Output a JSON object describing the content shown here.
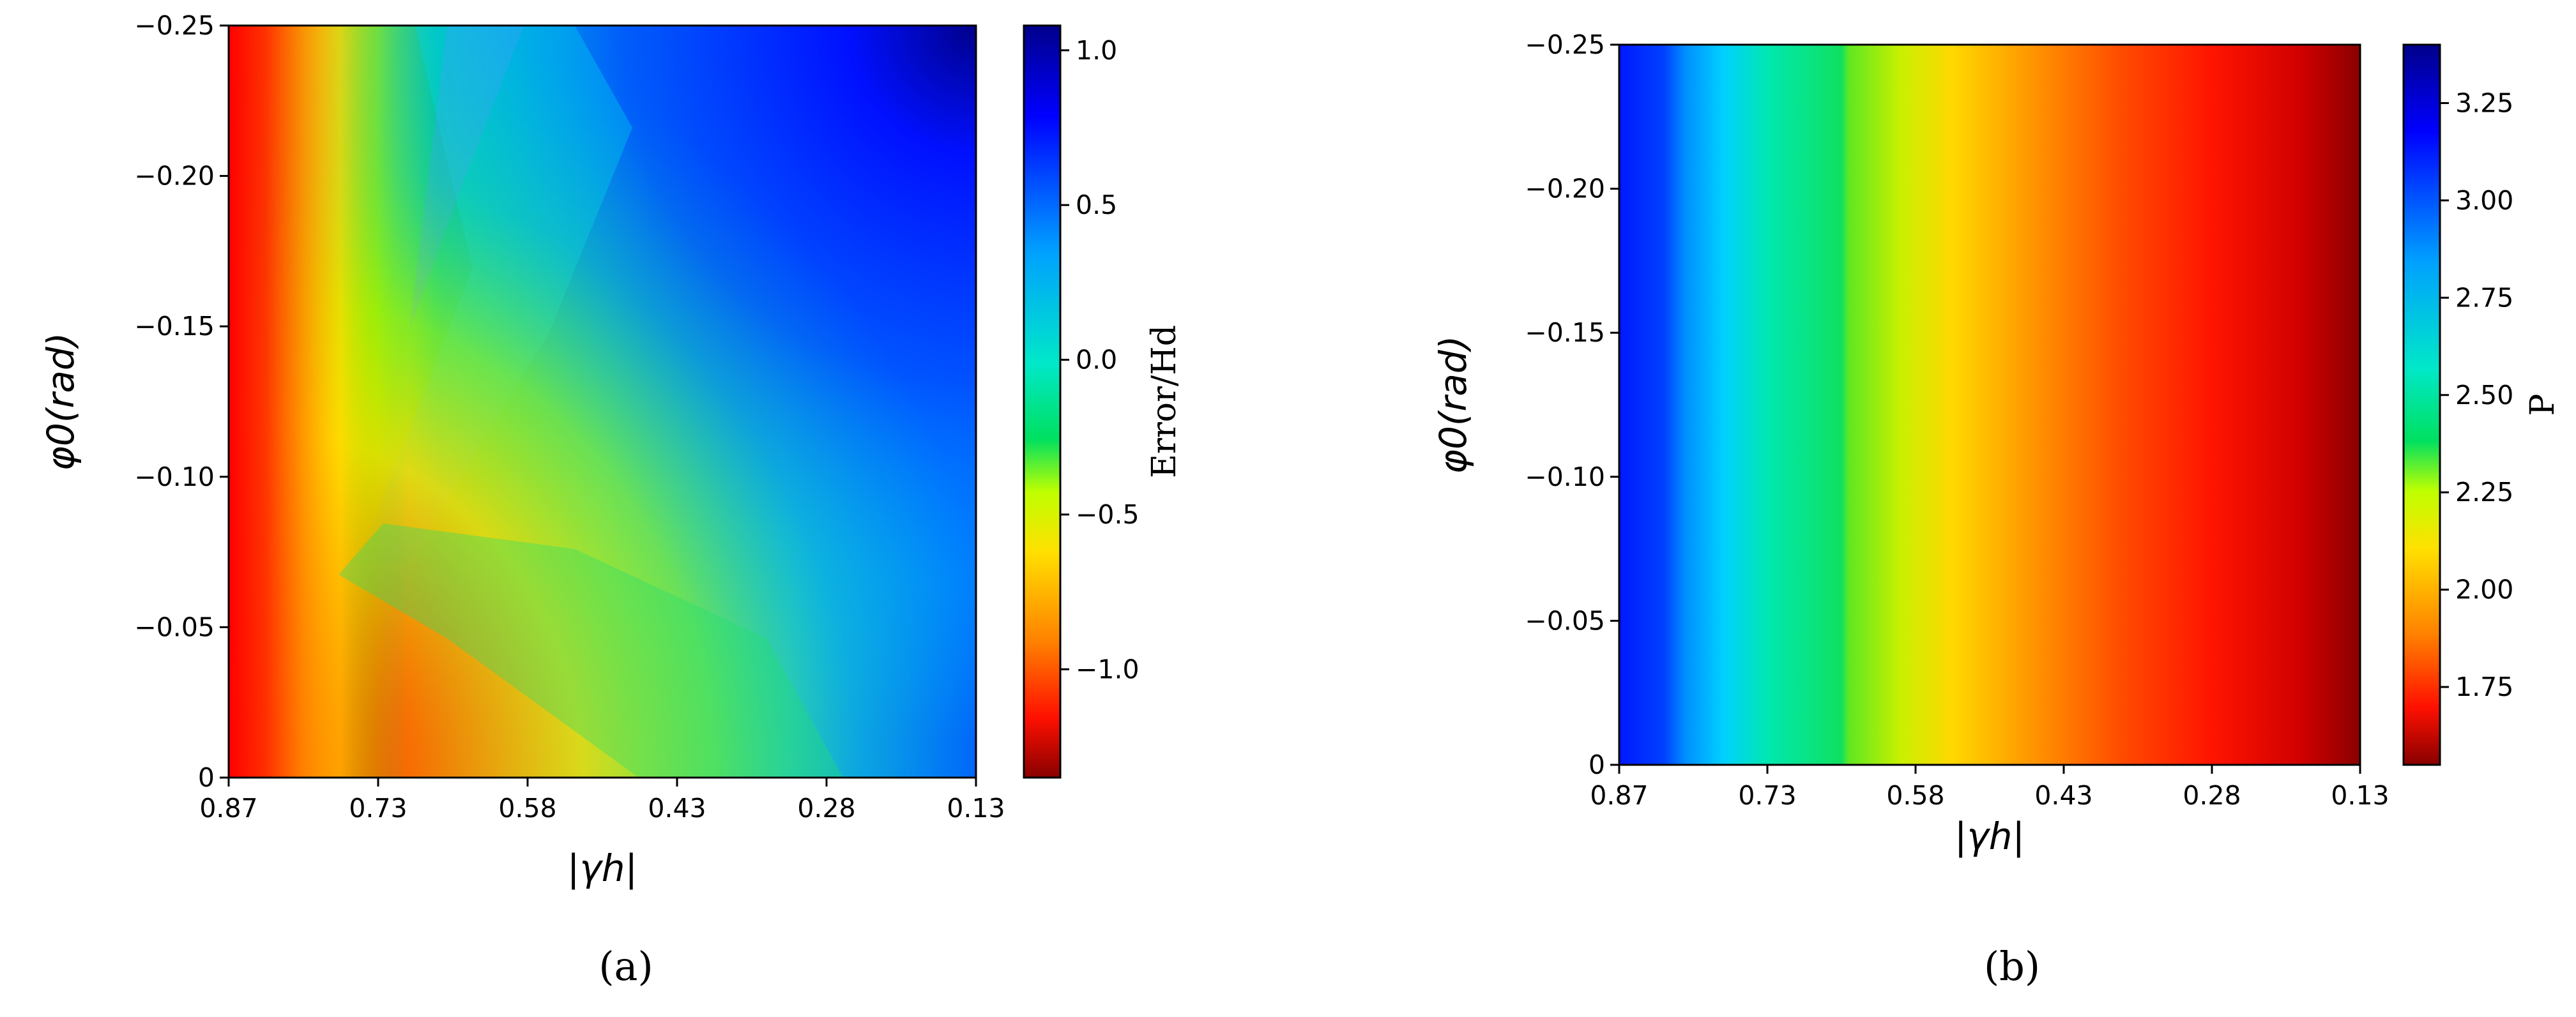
{
  "chart_data": [
    {
      "type": "heatmap",
      "panel": "a",
      "caption": "(a)",
      "xlabel": "|γh|",
      "ylabel": "φ0(rad)",
      "xtick_labels": [
        "0.87",
        "0.73",
        "0.58",
        "0.43",
        "0.28",
        "0.13"
      ],
      "ytick_labels": [
        "−0.25",
        "−0.20",
        "−0.15",
        "−0.10",
        "−0.05",
        "0"
      ],
      "x_range": [
        0.87,
        0.13
      ],
      "y_range": [
        0,
        -0.25
      ],
      "colorbar": {
        "label": "Error/Hd",
        "range": [
          -1.35,
          1.08
        ],
        "ticks": [
          "1.0",
          "0.5",
          "0.0",
          "−0.5",
          "−1.0"
        ],
        "tick_values": [
          1.0,
          0.5,
          0.0,
          -0.5,
          -1.0
        ],
        "colormap": "jet_r"
      },
      "description": "Error/Hd over |γh| and φ0: about −1.3 along the left edge and bottom-left corner, rising to about 0 in the middle band and near 1.0 at the top-right corner."
    },
    {
      "type": "heatmap",
      "panel": "b",
      "caption": "(b)",
      "xlabel": "|γh|",
      "ylabel": "φ0(rad)",
      "xtick_labels": [
        "0.87",
        "0.73",
        "0.58",
        "0.43",
        "0.28",
        "0.13"
      ],
      "ytick_labels": [
        "−0.25",
        "−0.20",
        "−0.15",
        "−0.10",
        "−0.05",
        "0"
      ],
      "x_range": [
        0.87,
        0.13
      ],
      "y_range": [
        0,
        -0.25
      ],
      "colorbar": {
        "label": "P",
        "range": [
          1.55,
          3.4
        ],
        "ticks": [
          "3.25",
          "3.00",
          "2.75",
          "2.50",
          "2.25",
          "2.00",
          "1.75"
        ],
        "tick_values": [
          3.25,
          3.0,
          2.75,
          2.5,
          2.25,
          2.0,
          1.75
        ],
        "colormap": "jet_r"
      },
      "description": "P depends only on |γh|: about 3.4 at |γh| = 0.87, decreasing to about 1.55 at |γh| = 0.13; constant along φ0."
    }
  ]
}
